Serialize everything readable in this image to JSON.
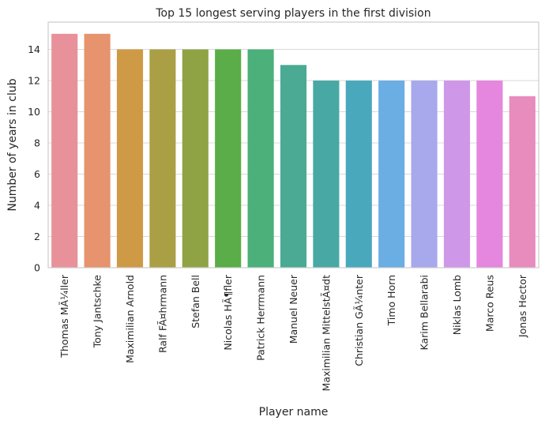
{
  "chart_data": {
    "type": "bar",
    "title": "Top 15 longest serving players in the first division",
    "xlabel": "Player name",
    "ylabel": "Number of years in club",
    "categories": [
      "Thomas MÃ¼ller",
      "Tony Jantschke",
      "Maximilian Arnold",
      "Ralf FÃ¤hrmann",
      "Stefan Bell",
      "Nicolas HÃ¶fler",
      "Patrick Herrmann",
      "Manuel Neuer",
      "Maximilian MittelstÃ¤dt",
      "Christian GÃ¼nter",
      "Timo Horn",
      "Karim Bellarabi",
      "Niklas Lomb",
      "Marco Reus",
      "Jonas Hector"
    ],
    "values": [
      15,
      15,
      14,
      14,
      14,
      14,
      14,
      13,
      12,
      12,
      12,
      12,
      12,
      12,
      11
    ],
    "colors": [
      "#e8919b",
      "#e6936e",
      "#cf9a45",
      "#aa9f45",
      "#8fa345",
      "#5aad48",
      "#4bb07a",
      "#4aaa94",
      "#48a9a4",
      "#4aa8bd",
      "#6aaee3",
      "#a8a8ec",
      "#cf97e8",
      "#e587de",
      "#e88bbd"
    ],
    "ylim": [
      0,
      15.75
    ],
    "yticks": [
      0,
      2,
      4,
      6,
      8,
      10,
      12,
      14
    ],
    "grid": "horizontal"
  }
}
